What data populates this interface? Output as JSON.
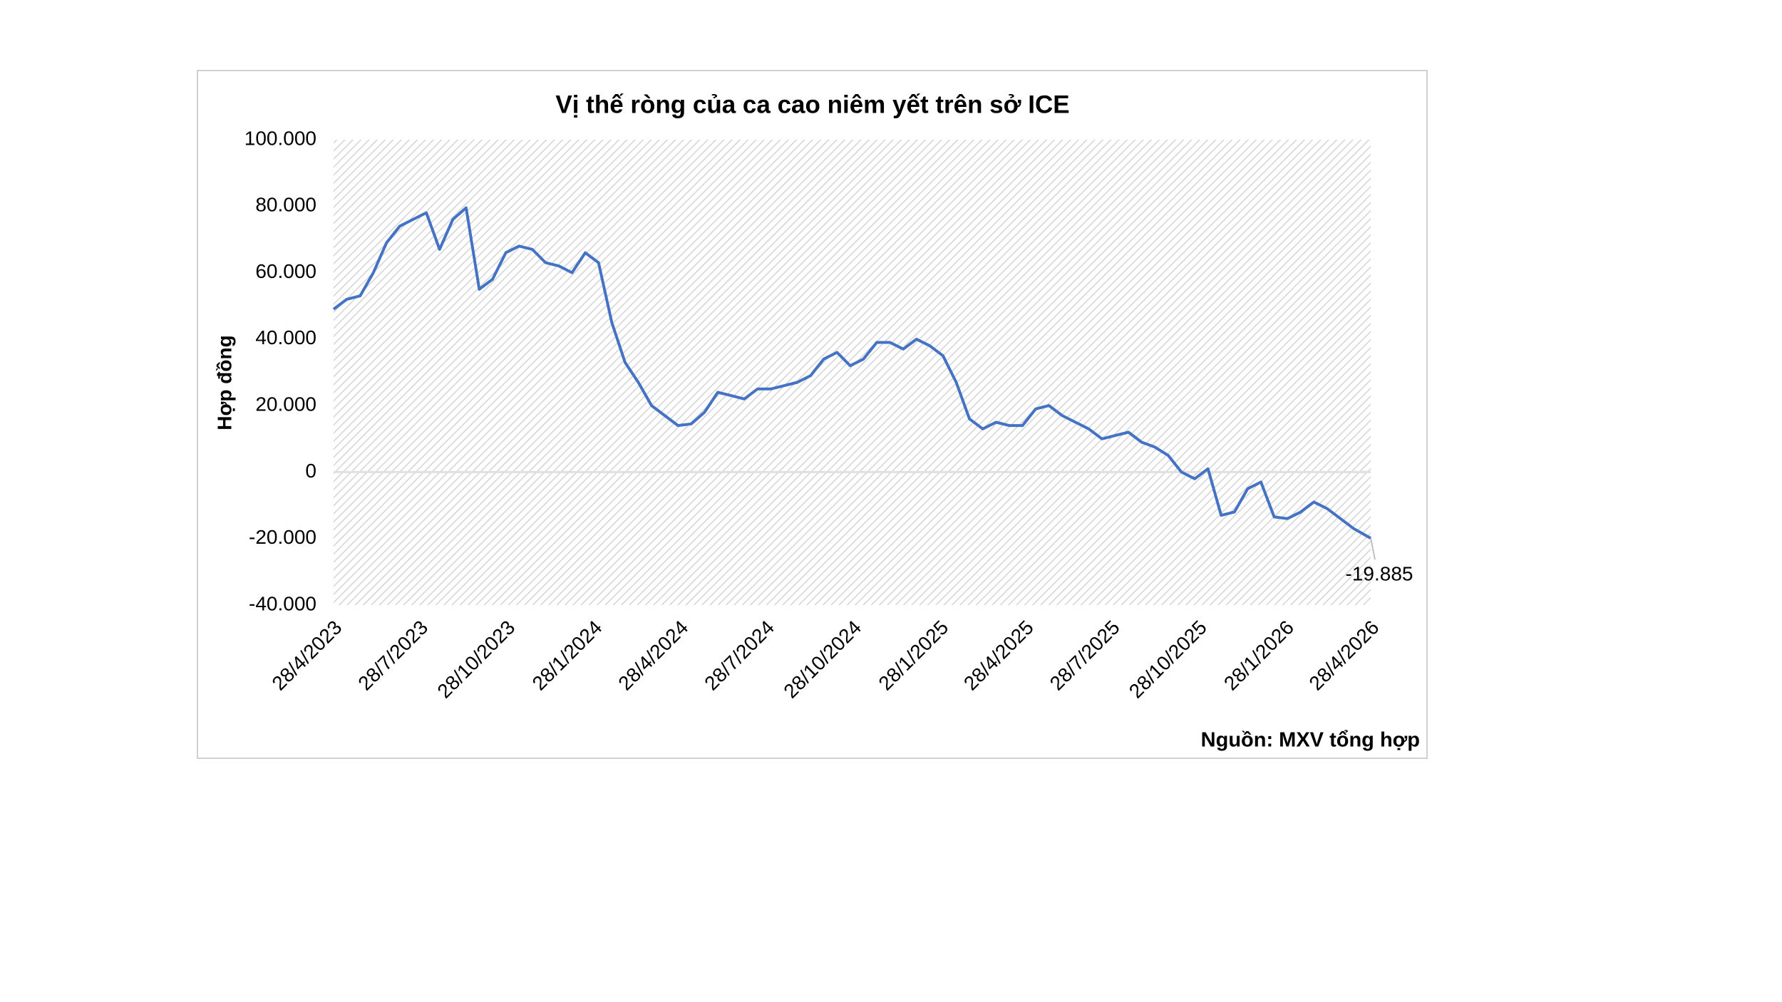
{
  "chart_data": {
    "type": "line",
    "title": "Vị thế ròng của ca cao niêm yết trên sở ICE",
    "y_label": "Hợp đồng",
    "source": "Nguồn: MXV tổng hợp",
    "x": [
      "28/4/2023",
      "12/5/2023",
      "26/5/2023",
      "9/6/2023",
      "23/6/2023",
      "7/7/2023",
      "21/7/2023",
      "4/8/2023",
      "18/8/2023",
      "1/9/2023",
      "15/9/2023",
      "29/9/2023",
      "13/10/2023",
      "27/10/2023",
      "10/11/2023",
      "24/11/2023",
      "8/12/2023",
      "22/12/2023",
      "5/1/2024",
      "19/1/2024",
      "2/2/2024",
      "16/2/2024",
      "1/3/2024",
      "15/3/2024",
      "29/3/2024",
      "12/4/2024",
      "26/4/2024",
      "10/5/2024",
      "24/5/2024",
      "7/6/2024",
      "21/6/2024",
      "5/7/2024",
      "19/7/2024",
      "2/8/2024",
      "16/8/2024",
      "30/8/2024",
      "13/9/2024",
      "27/9/2024",
      "11/10/2024",
      "25/10/2024",
      "8/11/2024",
      "22/11/2024",
      "6/12/2024",
      "20/12/2024",
      "3/1/2025",
      "17/1/2025",
      "31/1/2025",
      "14/2/2025",
      "28/2/2025",
      "14/3/2025",
      "28/3/2025",
      "11/4/2025",
      "25/4/2025",
      "9/5/2025",
      "23/5/2025",
      "6/6/2025",
      "20/6/2025",
      "4/7/2025",
      "18/7/2025",
      "1/8/2025",
      "15/8/2025",
      "29/8/2025",
      "12/9/2025",
      "26/9/2025",
      "10/10/2025",
      "24/10/2025",
      "7/11/2025",
      "21/11/2025",
      "5/12/2025",
      "19/12/2025",
      "2/1/2026",
      "16/1/2026",
      "30/1/2026",
      "13/2/2026",
      "27/2/2026",
      "13/3/2026",
      "27/3/2026",
      "10/4/2026",
      "28/4/2026"
    ],
    "series": [
      {
        "name": "Vị thế ròng",
        "color": "#4472c4",
        "values": [
          49000,
          52000,
          53000,
          60000,
          69000,
          74000,
          76000,
          78000,
          67000,
          76000,
          79500,
          55000,
          58000,
          66000,
          68000,
          67000,
          63000,
          62000,
          60000,
          66000,
          63000,
          45000,
          33000,
          27000,
          20000,
          17000,
          14000,
          14500,
          18000,
          24000,
          23000,
          22000,
          25000,
          25000,
          26000,
          27000,
          29000,
          34000,
          36000,
          32000,
          34000,
          39000,
          39000,
          37000,
          40000,
          38000,
          35000,
          27000,
          16000,
          13000,
          15000,
          14000,
          14000,
          19000,
          20000,
          17000,
          15000,
          13000,
          10000,
          11000,
          12000,
          9000,
          7500,
          5000,
          0,
          -2000,
          1000,
          -13000,
          -12000,
          -5000,
          -3000,
          -13500,
          -14000,
          -12000,
          -9000,
          -11000,
          -14000,
          -17000,
          -19885
        ],
        "value_labels": [
          null,
          null,
          null,
          null,
          null,
          null,
          null,
          null,
          null,
          null,
          null,
          null,
          null,
          null,
          null,
          null,
          null,
          null,
          null,
          null,
          null,
          null,
          null,
          null,
          null,
          null,
          null,
          null,
          null,
          null,
          null,
          null,
          null,
          null,
          null,
          null,
          null,
          null,
          null,
          null,
          null,
          null,
          null,
          null,
          null,
          null,
          null,
          null,
          null,
          null,
          null,
          null,
          null,
          null,
          null,
          null,
          null,
          null,
          null,
          null,
          null,
          null,
          null,
          null,
          null,
          null,
          null,
          null,
          null,
          null,
          null,
          null,
          null,
          null,
          null,
          null,
          null,
          null,
          "-19.885"
        ]
      }
    ],
    "xlim": [
      "28/4/2023",
      "28/4/2026"
    ],
    "xticks": [
      "28/4/2023",
      "28/7/2023",
      "28/10/2023",
      "28/1/2024",
      "28/4/2024",
      "28/7/2024",
      "28/10/2024",
      "28/1/2025",
      "28/4/2025",
      "28/7/2025",
      "28/10/2025",
      "28/1/2026",
      "28/4/2026"
    ],
    "ylim": [
      -40000,
      100000
    ],
    "yticks": [
      {
        "value": -40000,
        "label": "-40.000"
      },
      {
        "value": -20000,
        "label": "-20.000"
      },
      0,
      {
        "value": 20000,
        "label": "20.000"
      },
      {
        "value": 40000,
        "label": "40.000"
      },
      {
        "value": 60000,
        "label": "60.000"
      },
      {
        "value": 80000,
        "label": "80.000"
      },
      {
        "value": 100000,
        "label": "100.000"
      }
    ]
  }
}
